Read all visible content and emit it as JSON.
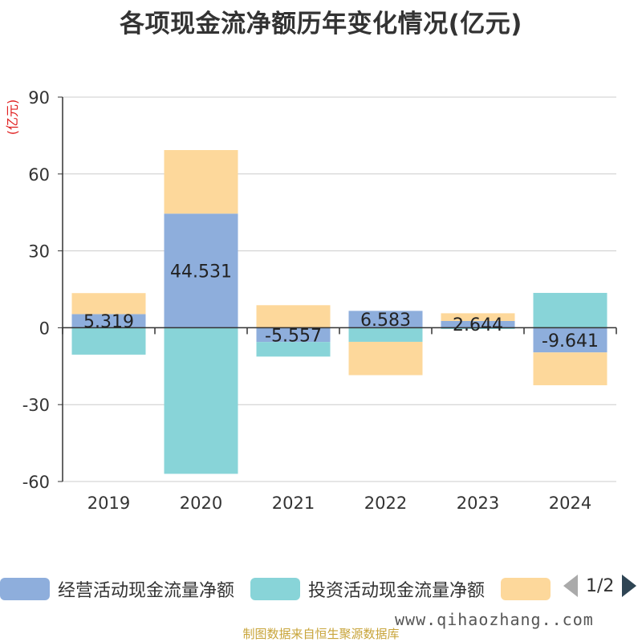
{
  "chart_data": {
    "type": "bar",
    "stacked": true,
    "title": "各项现金流净额历年变化情况(亿元)",
    "ylabel": "(亿元)",
    "ylim": [
      -60,
      90
    ],
    "yticks": [
      90,
      60,
      30,
      0,
      -30,
      -60
    ],
    "grid": true,
    "legend_position": "bottom",
    "categories": [
      "2019",
      "2020",
      "2021",
      "2022",
      "2023",
      "2024"
    ],
    "series": [
      {
        "name": "经营活动现金流量净额",
        "color": "#8eaedc",
        "values": [
          5.319,
          44.531,
          -5.557,
          6.583,
          2.644,
          -9.641
        ],
        "labels": [
          "5.319",
          "44.531",
          "-5.557",
          "6.583",
          "2.644",
          "-9.641"
        ]
      },
      {
        "name": "投资活动现金流量净额",
        "color": "#88d4d8",
        "values": [
          -10.5,
          -57.0,
          -5.7,
          -5.5,
          -0.5,
          13.6
        ]
      },
      {
        "name": "",
        "color": "#fdd89b",
        "values": [
          8.2,
          24.8,
          8.8,
          -13.0,
          3.0,
          -12.8
        ]
      }
    ]
  },
  "legend": {
    "page": "1/2"
  },
  "footer": {
    "watermark": "www.qihaozhang..com",
    "source": "制图数据来自恒生聚源数据库"
  }
}
